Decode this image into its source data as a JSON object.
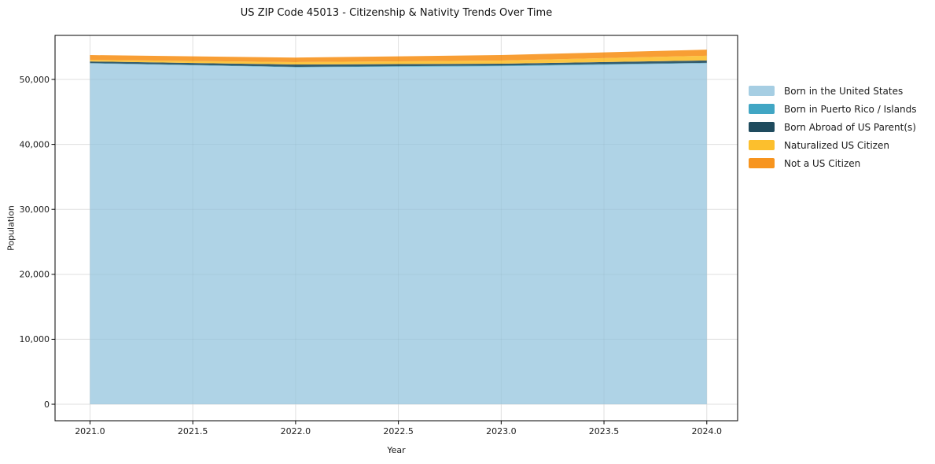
{
  "figure": {
    "background": "#ffffff"
  },
  "chart_data": {
    "type": "area",
    "stacked": true,
    "title": "US ZIP Code 45013 - Citizenship & Nativity Trends Over Time",
    "xlabel": "Year",
    "ylabel": "Population",
    "x": [
      2021,
      2022,
      2023,
      2024
    ],
    "series": [
      {
        "name": "Born in the United States",
        "color": "#a6cee3",
        "values": [
          52460,
          51880,
          52030,
          52500
        ]
      },
      {
        "name": "Born in Puerto Rico / Islands",
        "color": "#41a6c4",
        "values": [
          60,
          60,
          110,
          60
        ]
      },
      {
        "name": "Born Abroad of US Parent(s)",
        "color": "#1f4b5e",
        "values": [
          250,
          360,
          280,
          360
        ]
      },
      {
        "name": "Naturalized US Citizen",
        "color": "#fcbf2d",
        "values": [
          240,
          370,
          490,
          730
        ]
      },
      {
        "name": "Not a US Citizen",
        "color": "#f7941e",
        "values": [
          740,
          690,
          840,
          940
        ]
      }
    ],
    "x_ticks": [
      2021.0,
      2021.5,
      2022.0,
      2022.5,
      2023.0,
      2023.5,
      2024.0
    ],
    "x_tick_labels": [
      "2021.0",
      "2021.5",
      "2022.0",
      "2022.5",
      "2023.0",
      "2023.5",
      "2024.0"
    ],
    "y_ticks": [
      0,
      10000,
      20000,
      30000,
      40000,
      50000
    ],
    "y_tick_labels": [
      "0",
      "10,000",
      "20,000",
      "30,000",
      "40,000",
      "50,000"
    ],
    "xlim": [
      2020.83,
      2024.15
    ],
    "ylim": [
      -2540,
      56780
    ],
    "grid": true,
    "legend_position": "right-outside",
    "legend_frame": false,
    "colors": {
      "grid": "#e7e7e7",
      "spine": "#000000",
      "text": "#1a1a1a"
    }
  }
}
